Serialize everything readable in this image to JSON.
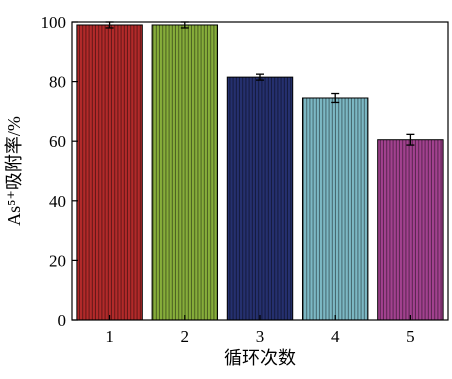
{
  "chart_data": {
    "type": "bar",
    "categories": [
      "1",
      "2",
      "3",
      "4",
      "5"
    ],
    "values": [
      99.0,
      99.0,
      81.5,
      74.5,
      60.5
    ],
    "errors": [
      1.0,
      1.0,
      1.0,
      1.5,
      1.8
    ],
    "colors": [
      "#b22a2a",
      "#86ad3a",
      "#25306f",
      "#7cb8c4",
      "#a2418f"
    ],
    "title": "",
    "xlabel": "循环次数",
    "ylabel": "As⁵⁺吸附率/%",
    "ylim": [
      0,
      100
    ],
    "yticks": [
      "0",
      "20",
      "40",
      "60",
      "80",
      "100"
    ],
    "grid": false,
    "legend": "none"
  }
}
